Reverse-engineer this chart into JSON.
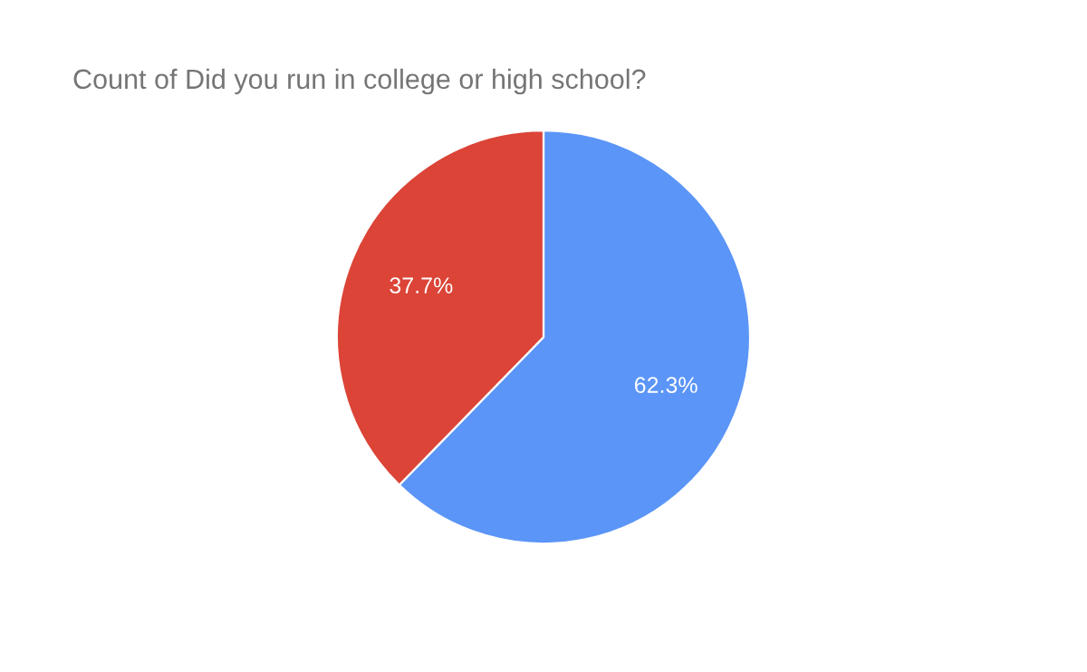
{
  "chart_data": {
    "type": "pie",
    "title": "Count of Did you run in college or high school?",
    "categories": [
      null,
      null
    ],
    "values": [
      62.3,
      37.7
    ],
    "value_labels": [
      "62.3%",
      "37.7%"
    ],
    "colors": [
      "#5b95f7",
      "#db4437"
    ]
  }
}
